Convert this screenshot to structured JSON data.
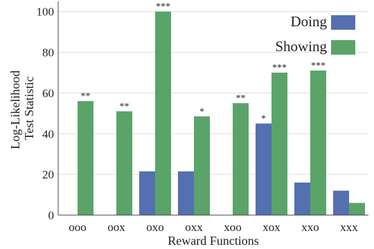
{
  "chart_data": {
    "type": "bar",
    "title": "",
    "xlabel": "Reward Functions",
    "ylabel_lines": [
      "Log-Likelihood",
      "Test Statistic"
    ],
    "categories": [
      "ooo",
      "oox",
      "oxo",
      "oxx",
      "xoo",
      "xox",
      "xxo",
      "xxx"
    ],
    "ylim": [
      0,
      105
    ],
    "yticks": [
      0,
      20,
      40,
      60,
      80,
      100
    ],
    "grid": true,
    "legend_position": "top-right",
    "series": [
      {
        "name": "Doing",
        "color": "#5470b0",
        "values": [
          0,
          0,
          21.5,
          21.5,
          0,
          45,
          16,
          12
        ],
        "annotations": [
          "",
          "",
          "",
          "",
          "",
          "*",
          "",
          ""
        ]
      },
      {
        "name": "Showing",
        "color": "#5aa469",
        "values": [
          56,
          51,
          100,
          48.5,
          55,
          70,
          71,
          6
        ],
        "annotations": [
          "**",
          "**",
          "***",
          "*",
          "**",
          "***",
          "***",
          ""
        ]
      }
    ]
  }
}
